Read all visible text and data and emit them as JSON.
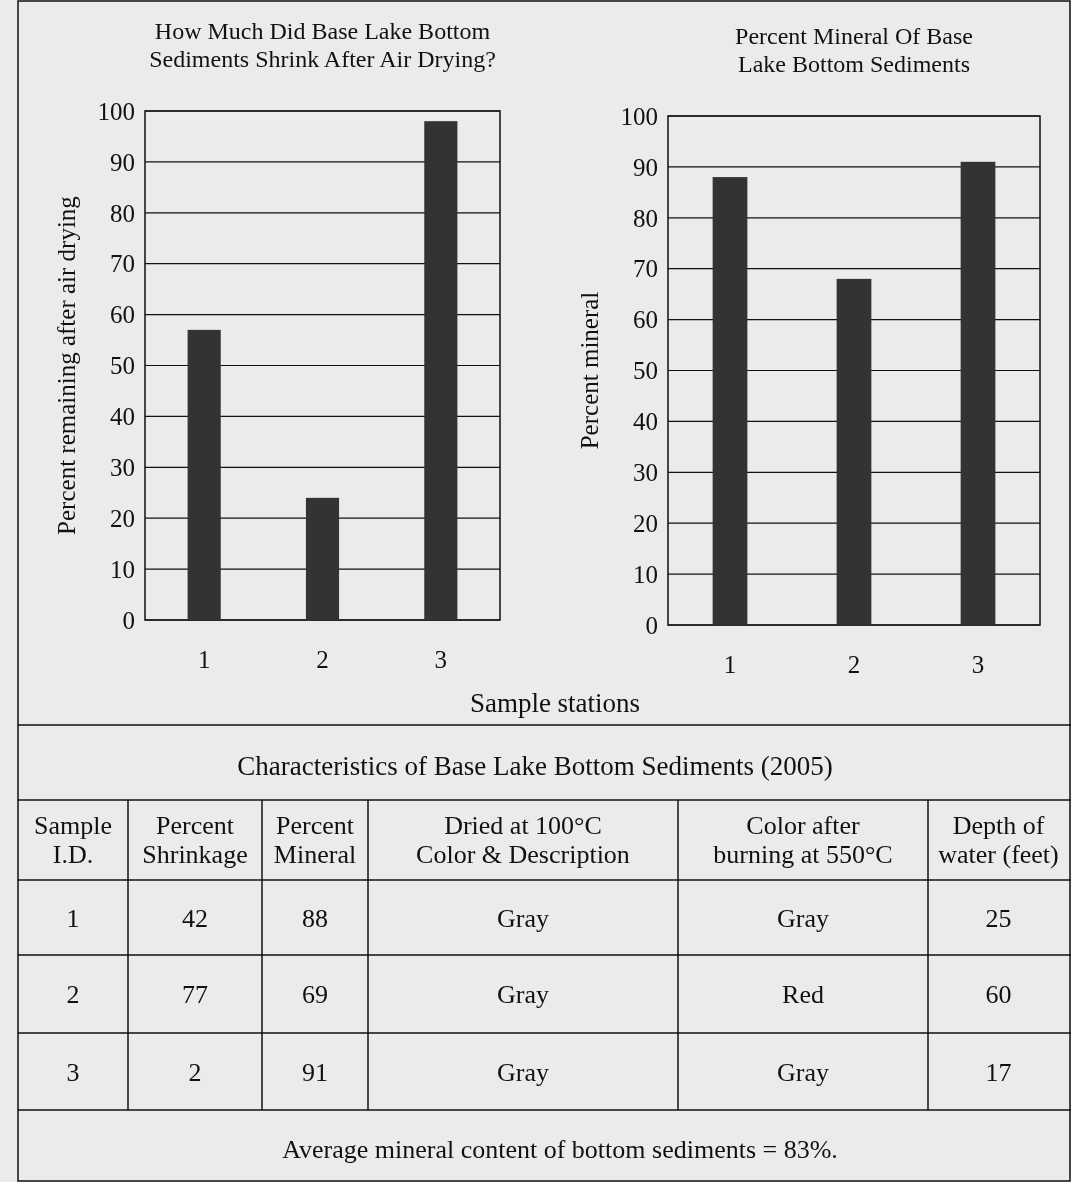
{
  "chart_data": [
    {
      "type": "bar",
      "title": "How Much Did Base Lake Bottom\nSediments Shrink After Air Drying?",
      "ylabel": "Percent remaining after air drying",
      "xlabel": "Sample stations",
      "categories": [
        "1",
        "2",
        "3"
      ],
      "values": [
        57,
        24,
        98
      ],
      "color": "#333333",
      "ylim": [
        0,
        100
      ],
      "yticks": [
        0,
        10,
        20,
        30,
        40,
        50,
        60,
        70,
        80,
        90,
        100
      ],
      "grid": "y"
    },
    {
      "type": "bar",
      "title": "Percent Mineral Of Base\nLake Bottom Sediments",
      "ylabel": "Percent mineral",
      "categories": [
        "1",
        "2",
        "3"
      ],
      "values": [
        88,
        68,
        91
      ],
      "color": "#333333",
      "ylim": [
        0,
        100
      ],
      "yticks": [
        0,
        10,
        20,
        30,
        40,
        50,
        60,
        70,
        80,
        90,
        100
      ],
      "grid": "y"
    },
    {
      "type": "other",
      "title": "Characteristics of Base Lake Bottom Sediments (2005)",
      "categories": [
        "Sample\nI.D.",
        "Percent\nShrinkage",
        "Percent\nMineral",
        "Dried at 100°C\nColor & Description",
        "Color after\nburning at 550°C",
        "Depth of\nwater (feet)"
      ],
      "annotations": [
        "1",
        "42",
        "88",
        "Gray",
        "Gray",
        "25",
        "2",
        "77",
        "69",
        "Gray",
        "Red",
        "60",
        "3",
        "2",
        "91",
        "Gray",
        "Gray",
        "17",
        "Average mineral content of bottom sediments = 83%."
      ]
    }
  ]
}
